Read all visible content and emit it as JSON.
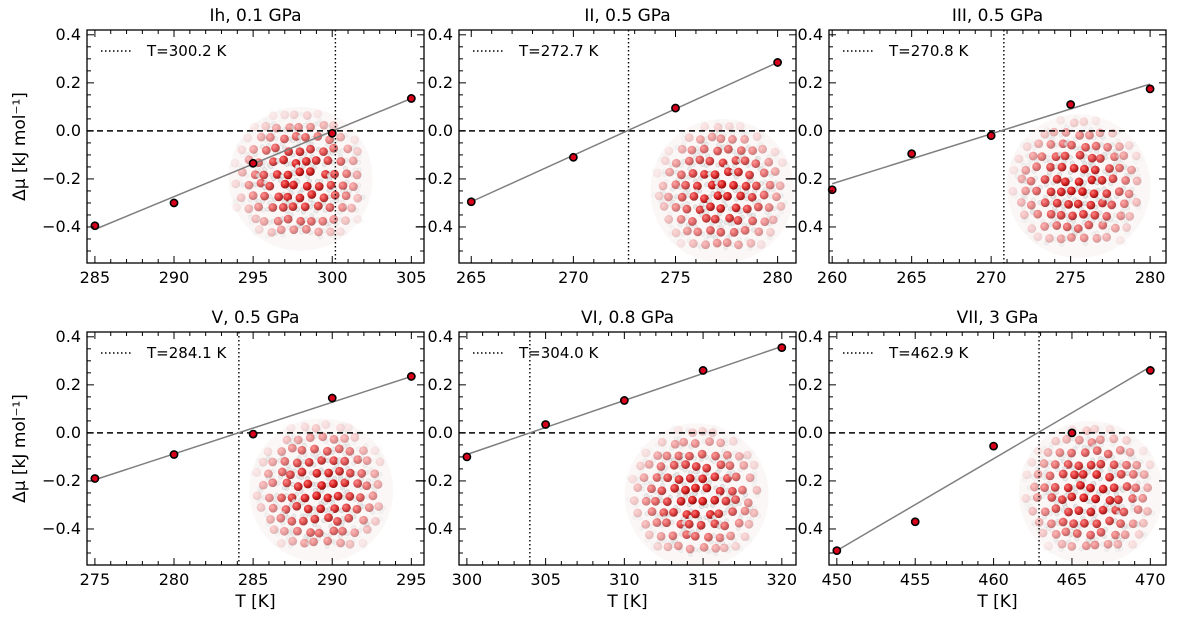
{
  "chart_data": [
    {
      "type": "scatter",
      "title": "Ih, 0.1 GPa",
      "xlabel": "",
      "ylabel": "Δμ [kJ mol⁻¹]",
      "xlim": [
        284.5,
        305.8
      ],
      "ylim": [
        -0.55,
        0.42
      ],
      "xticks": [
        285,
        290,
        295,
        300,
        305
      ],
      "yticks": [
        -0.4,
        -0.2,
        0.0,
        0.2,
        0.4
      ],
      "points": {
        "x": [
          285,
          290,
          295,
          300,
          305
        ],
        "y": [
          -0.395,
          -0.3,
          -0.135,
          -0.01,
          0.135
        ]
      },
      "fit_line": {
        "x": [
          285,
          305
        ],
        "y": [
          -0.41,
          0.135
        ]
      },
      "zero_line": 0.0,
      "vline": 300.2,
      "legend": "T=300.2 K",
      "inset": "ice-structure-image",
      "inset_center": [
        298,
        -0.2
      ]
    },
    {
      "type": "scatter",
      "title": "II, 0.5 GPa",
      "xlabel": "",
      "ylabel": "",
      "xlim": [
        264.4,
        280.9
      ],
      "ylim": [
        -0.55,
        0.42
      ],
      "xticks": [
        265,
        270,
        275,
        280
      ],
      "yticks": [
        -0.4,
        -0.2,
        0.0,
        0.2,
        0.4
      ],
      "points": {
        "x": [
          265,
          270,
          275,
          280
        ],
        "y": [
          -0.295,
          -0.11,
          0.095,
          0.285
        ]
      },
      "fit_line": {
        "x": [
          265,
          280
        ],
        "y": [
          -0.295,
          0.285
        ]
      },
      "zero_line": 0.0,
      "vline": 272.7,
      "legend": "T=272.7 K",
      "inset": "ice-structure-image",
      "inset_center": [
        277.3,
        -0.25
      ]
    },
    {
      "type": "scatter",
      "title": "III, 0.5 GPa",
      "xlabel": "",
      "ylabel": "",
      "xlim": [
        259.8,
        281.0
      ],
      "ylim": [
        -0.55,
        0.42
      ],
      "xticks": [
        260,
        265,
        270,
        275,
        280
      ],
      "yticks": [
        -0.4,
        -0.2,
        0.0,
        0.2,
        0.4
      ],
      "points": {
        "x": [
          260,
          265,
          270,
          275,
          280
        ],
        "y": [
          -0.245,
          -0.095,
          -0.02,
          0.11,
          0.175
        ]
      },
      "fit_line": {
        "x": [
          260,
          280
        ],
        "y": [
          -0.22,
          0.195
        ]
      },
      "zero_line": 0.0,
      "vline": 270.8,
      "legend": "T=270.8 K",
      "inset": "ice-structure-image",
      "inset_center": [
        275.5,
        -0.23
      ]
    },
    {
      "type": "scatter",
      "title": "V, 0.5 GPa",
      "xlabel": "T [K]",
      "ylabel": "Δμ [kJ mol⁻¹]",
      "xlim": [
        274.5,
        295.8
      ],
      "ylim": [
        -0.55,
        0.42
      ],
      "xticks": [
        275,
        280,
        285,
        290,
        295
      ],
      "yticks": [
        -0.4,
        -0.2,
        0.0,
        0.2,
        0.4
      ],
      "points": {
        "x": [
          275,
          280,
          285,
          290,
          295
        ],
        "y": [
          -0.19,
          -0.09,
          -0.005,
          0.145,
          0.235
        ]
      },
      "fit_line": {
        "x": [
          275,
          295
        ],
        "y": [
          -0.195,
          0.235
        ]
      },
      "zero_line": 0.0,
      "vline": 284.1,
      "legend": "T=284.1 K",
      "inset": "ice-structure-image",
      "inset_center": [
        289.3,
        -0.24
      ]
    },
    {
      "type": "scatter",
      "title": "VI, 0.8 GPa",
      "xlabel": "T [K]",
      "ylabel": "",
      "xlim": [
        299.5,
        320.9
      ],
      "ylim": [
        -0.55,
        0.42
      ],
      "xticks": [
        300,
        305,
        310,
        315,
        320
      ],
      "yticks": [
        -0.4,
        -0.2,
        0.0,
        0.2,
        0.4
      ],
      "points": {
        "x": [
          300,
          305,
          310,
          315,
          320
        ],
        "y": [
          -0.1,
          0.035,
          0.135,
          0.26,
          0.355
        ]
      },
      "fit_line": {
        "x": [
          300,
          320
        ],
        "y": [
          -0.09,
          0.36
        ]
      },
      "zero_line": 0.0,
      "vline": 304.0,
      "legend": "T=304.0 K",
      "inset": "ice-structure-image",
      "inset_center": [
        314.6,
        -0.26
      ]
    },
    {
      "type": "scatter",
      "title": "VII, 3 GPa",
      "xlabel": "T [K]",
      "ylabel": "",
      "xlim": [
        449.5,
        471.0
      ],
      "ylim": [
        -0.55,
        0.42
      ],
      "xticks": [
        450,
        455,
        460,
        465,
        470
      ],
      "yticks": [
        -0.4,
        -0.2,
        0.0,
        0.2,
        0.4
      ],
      "points": {
        "x": [
          450,
          455,
          460,
          465,
          470
        ],
        "y": [
          -0.49,
          -0.37,
          -0.055,
          0.0,
          0.26
        ]
      },
      "fit_line": {
        "x": [
          450,
          470
        ],
        "y": [
          -0.49,
          0.275
        ]
      },
      "zero_line": 0.0,
      "vline": 462.9,
      "legend": "T=462.9 K",
      "inset": "ice-structure-image",
      "inset_center": [
        466.2,
        -0.25
      ]
    }
  ],
  "colors": {
    "marker_fill": "#d9001b",
    "marker_edge": "#000000",
    "fit_line": "#7f7f7f",
    "axis": "#000000",
    "oxygen": "#d81e1e",
    "hydrogen": "#e6e6e6"
  }
}
